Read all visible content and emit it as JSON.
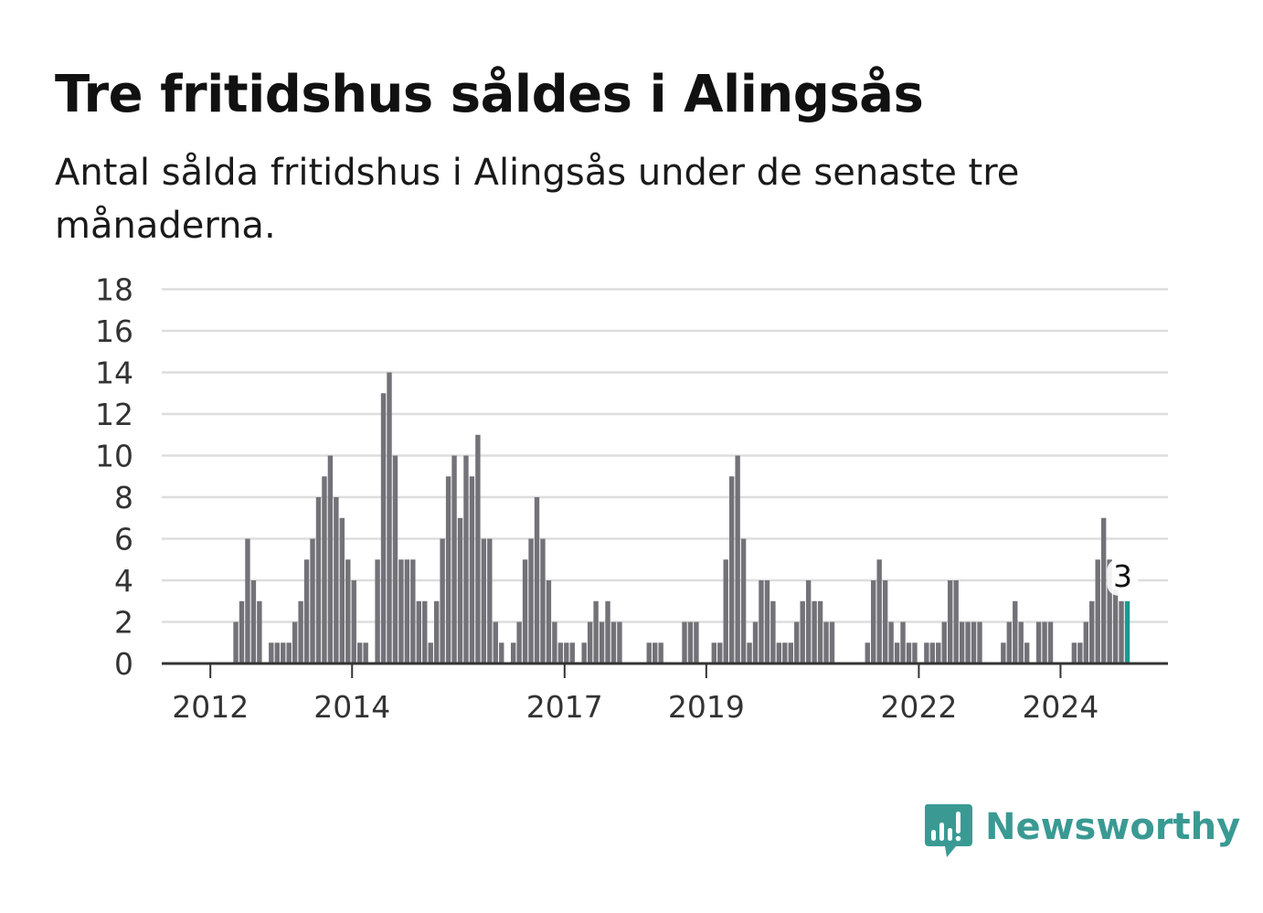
{
  "title": "Tre fritidshus såldes i Alingsås",
  "subtitle": "Antal sålda fritidshus i Alingsås under de senaste tre månaderna.",
  "brand": {
    "name": "Newsworthy",
    "color": "#3a9a93",
    "icon": "newsworthy-bar-chart-icon"
  },
  "chart_data": {
    "type": "bar",
    "xlabel": "",
    "ylabel": "",
    "ylim": [
      0,
      18
    ],
    "yticks": [
      "0",
      "2",
      "4",
      "6",
      "8",
      "10",
      "12",
      "14",
      "16",
      "18"
    ],
    "xticks": [
      {
        "label": "2012",
        "month_index": 0
      },
      {
        "label": "2014",
        "month_index": 24
      },
      {
        "label": "2017",
        "month_index": 60
      },
      {
        "label": "2019",
        "month_index": 84
      },
      {
        "label": "2022",
        "month_index": 120
      },
      {
        "label": "2024",
        "month_index": 144
      }
    ],
    "grid": true,
    "bar_color": "#737278",
    "highlight_color": "#1a9a8f",
    "highlight_label": "3",
    "values": [
      0,
      0,
      0,
      0,
      2,
      3,
      6,
      4,
      3,
      0,
      1,
      1,
      1,
      1,
      2,
      3,
      5,
      6,
      8,
      9,
      10,
      8,
      7,
      5,
      4,
      1,
      1,
      0,
      5,
      13,
      14,
      10,
      5,
      5,
      5,
      3,
      3,
      1,
      3,
      6,
      9,
      10,
      7,
      10,
      9,
      11,
      6,
      6,
      2,
      1,
      0,
      1,
      2,
      5,
      6,
      8,
      6,
      4,
      2,
      1,
      1,
      1,
      0,
      1,
      2,
      3,
      2,
      3,
      2,
      2,
      0,
      0,
      0,
      0,
      1,
      1,
      1,
      0,
      0,
      0,
      2,
      2,
      2,
      0,
      0,
      1,
      1,
      5,
      9,
      10,
      6,
      1,
      2,
      4,
      4,
      3,
      1,
      1,
      1,
      2,
      3,
      4,
      3,
      3,
      2,
      2,
      0,
      0,
      0,
      0,
      0,
      1,
      4,
      5,
      4,
      2,
      1,
      2,
      1,
      1,
      0,
      1,
      1,
      1,
      2,
      4,
      4,
      2,
      2,
      2,
      2,
      0,
      0,
      0,
      1,
      2,
      3,
      2,
      1,
      0,
      2,
      2,
      2,
      0,
      0,
      0,
      1,
      1,
      2,
      3,
      5,
      7,
      5,
      4,
      3,
      3
    ]
  }
}
